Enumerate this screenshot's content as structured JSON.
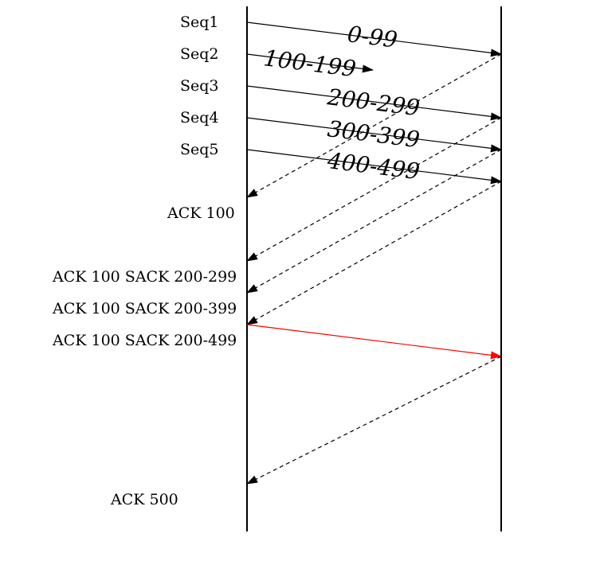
{
  "diagram": {
    "sender_labels": [
      "Seq1",
      "Seq2",
      "Seq3",
      "Seq4",
      "Seq5"
    ],
    "segment_labels": [
      "0-99",
      "100-199",
      "200-299",
      "300-399",
      "400-499"
    ],
    "ack_labels": [
      "ACK 100",
      "ACK 100 SACK 200-299",
      "ACK 100 SACK 200-399",
      "ACK 100 SACK 200-499",
      "ACK 500"
    ],
    "colors": {
      "line": "#000000",
      "retransmit": "#ff0000"
    }
  }
}
